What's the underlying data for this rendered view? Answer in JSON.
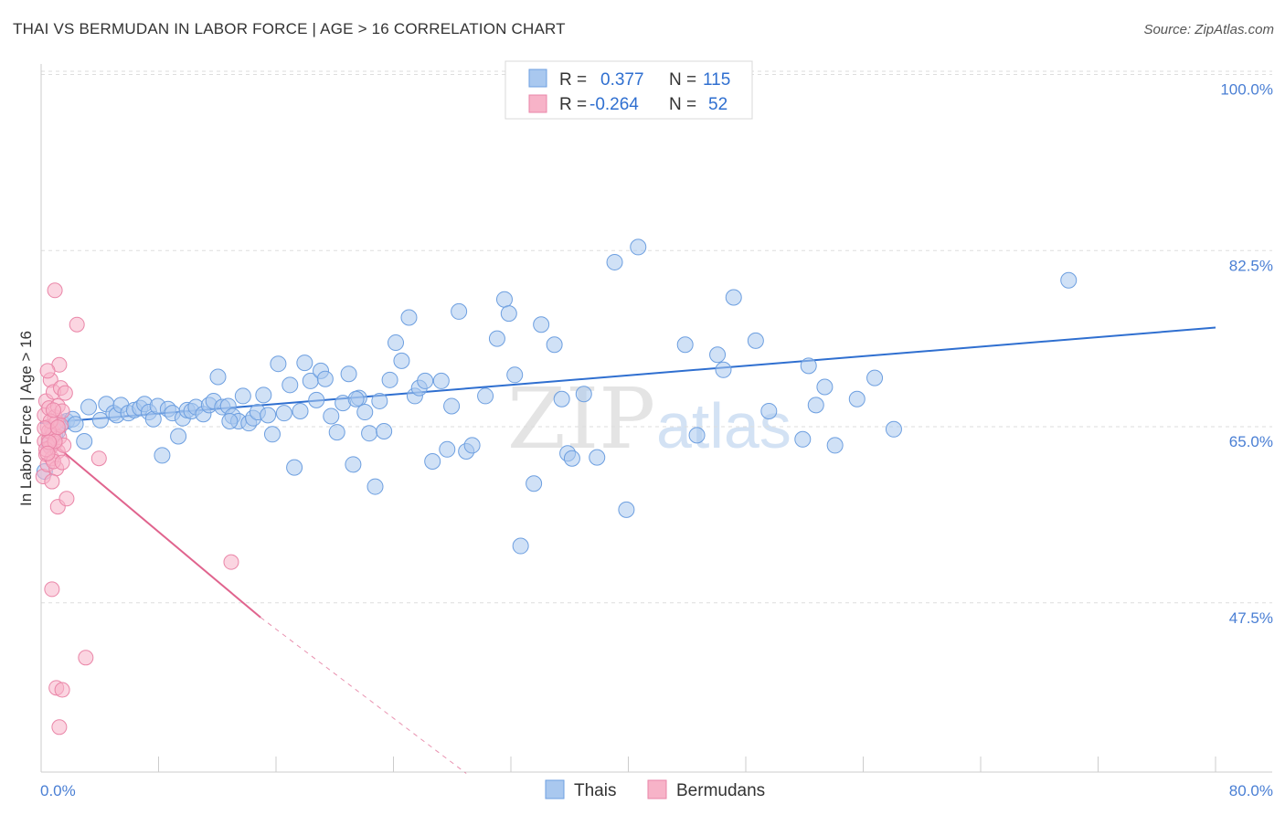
{
  "header": {
    "title": "THAI VS BERMUDAN IN LABOR FORCE | AGE > 16 CORRELATION CHART",
    "source": "Source: ZipAtlas.com"
  },
  "legend": {
    "rows": [
      {
        "r_label": "R =",
        "r_value": "0.377",
        "n_label": "N =",
        "n_value": "115",
        "color": "#a9c8ef"
      },
      {
        "r_label": "R =",
        "r_value": "-0.264",
        "n_label": "N =",
        "n_value": "52",
        "color": "#f7b3c8"
      }
    ]
  },
  "bottom_legend": [
    {
      "label": "Thais",
      "color": "#a9c8ef"
    },
    {
      "label": "Bermudans",
      "color": "#f7b3c8"
    }
  ],
  "watermark": {
    "zip": "ZIP",
    "atlas": "atlas"
  },
  "colors": {
    "blue_fill": "#a9c8ef",
    "blue_stroke": "#6d9fe0",
    "blue_line": "#2f6fd0",
    "pink_fill": "#f7b3c8",
    "pink_stroke": "#ea86a8",
    "pink_line": "#e0648e",
    "grid": "#dddddd",
    "axis": "#cccccc"
  },
  "chart_data": {
    "type": "scatter",
    "title": "THAI VS BERMUDAN IN LABOR FORCE | AGE > 16 CORRELATION CHART",
    "xlabel": "",
    "ylabel": "In Labor Force | Age > 16",
    "xlim": [
      0,
      80
    ],
    "ylim": [
      32,
      103
    ],
    "x_tick_labels": [
      "0.0%",
      "80.0%"
    ],
    "y_ticks": [
      47.5,
      65.0,
      82.5,
      100.0
    ],
    "y_tick_labels": [
      "47.5%",
      "65.0%",
      "82.5%",
      "100.0%"
    ],
    "grid": true,
    "series": [
      {
        "name": "Thais",
        "r": 0.377,
        "n": 115,
        "trend": {
          "x": [
            0,
            80
          ],
          "y": [
            66.8,
            76.3
          ]
        },
        "points": [
          [
            0.3,
            62.0
          ],
          [
            0.6,
            64.7
          ],
          [
            1.0,
            65.6
          ],
          [
            1.2,
            66.0
          ],
          [
            1.5,
            66.8
          ],
          [
            1.8,
            67.0
          ],
          [
            2.2,
            67.2
          ],
          [
            2.4,
            66.7
          ],
          [
            3.0,
            65.0
          ],
          [
            3.3,
            68.4
          ],
          [
            4.1,
            67.1
          ],
          [
            4.5,
            68.7
          ],
          [
            5.0,
            67.8
          ],
          [
            5.2,
            67.6
          ],
          [
            5.5,
            68.6
          ],
          [
            6.0,
            67.8
          ],
          [
            6.4,
            68.1
          ],
          [
            6.8,
            68.3
          ],
          [
            7.1,
            68.7
          ],
          [
            7.4,
            67.9
          ],
          [
            7.7,
            67.2
          ],
          [
            8.0,
            68.5
          ],
          [
            8.3,
            63.6
          ],
          [
            8.7,
            68.2
          ],
          [
            9.0,
            67.8
          ],
          [
            9.4,
            65.5
          ],
          [
            9.7,
            67.3
          ],
          [
            10.0,
            68.1
          ],
          [
            10.3,
            68.0
          ],
          [
            10.6,
            68.4
          ],
          [
            11.1,
            67.7
          ],
          [
            11.5,
            68.6
          ],
          [
            11.8,
            69.0
          ],
          [
            12.1,
            71.4
          ],
          [
            12.4,
            68.4
          ],
          [
            12.8,
            68.5
          ],
          [
            13.1,
            67.5
          ],
          [
            13.5,
            67.0
          ],
          [
            13.8,
            69.5
          ],
          [
            14.2,
            66.8
          ],
          [
            14.5,
            67.3
          ],
          [
            14.8,
            67.9
          ],
          [
            15.2,
            69.6
          ],
          [
            15.5,
            67.6
          ],
          [
            15.8,
            65.7
          ],
          [
            16.2,
            72.7
          ],
          [
            16.6,
            67.8
          ],
          [
            17.0,
            70.6
          ],
          [
            17.3,
            62.4
          ],
          [
            17.7,
            68.0
          ],
          [
            18.0,
            72.8
          ],
          [
            18.4,
            71.0
          ],
          [
            18.8,
            69.1
          ],
          [
            19.1,
            72.0
          ],
          [
            19.4,
            71.2
          ],
          [
            19.8,
            67.5
          ],
          [
            20.2,
            65.9
          ],
          [
            20.6,
            68.8
          ],
          [
            21.0,
            71.7
          ],
          [
            21.3,
            62.7
          ],
          [
            21.7,
            69.3
          ],
          [
            22.1,
            67.9
          ],
          [
            22.4,
            65.8
          ],
          [
            22.8,
            60.5
          ],
          [
            23.1,
            69.0
          ],
          [
            23.4,
            66.0
          ],
          [
            23.8,
            71.1
          ],
          [
            24.2,
            74.8
          ],
          [
            24.6,
            73.0
          ],
          [
            25.1,
            77.3
          ],
          [
            25.5,
            69.5
          ],
          [
            25.8,
            70.3
          ],
          [
            26.2,
            71.0
          ],
          [
            26.7,
            63.0
          ],
          [
            27.3,
            71.0
          ],
          [
            27.7,
            64.2
          ],
          [
            28.0,
            68.5
          ],
          [
            28.5,
            77.9
          ],
          [
            29.0,
            64.0
          ],
          [
            29.4,
            64.6
          ],
          [
            30.3,
            69.5
          ],
          [
            31.1,
            75.2
          ],
          [
            31.6,
            79.1
          ],
          [
            31.9,
            77.7
          ],
          [
            32.3,
            71.6
          ],
          [
            32.7,
            54.6
          ],
          [
            33.6,
            60.8
          ],
          [
            34.1,
            76.6
          ],
          [
            35.0,
            74.6
          ],
          [
            35.5,
            69.2
          ],
          [
            35.9,
            63.8
          ],
          [
            36.2,
            63.3
          ],
          [
            37.0,
            69.7
          ],
          [
            39.1,
            82.8
          ],
          [
            39.9,
            58.2
          ],
          [
            40.7,
            84.3
          ],
          [
            43.9,
            74.6
          ],
          [
            44.7,
            65.6
          ],
          [
            46.1,
            73.6
          ],
          [
            46.5,
            72.1
          ],
          [
            47.2,
            79.3
          ],
          [
            48.7,
            75.0
          ],
          [
            49.6,
            68.0
          ],
          [
            51.9,
            65.2
          ],
          [
            52.3,
            72.5
          ],
          [
            52.8,
            68.6
          ],
          [
            53.4,
            70.4
          ],
          [
            54.1,
            64.6
          ],
          [
            55.6,
            69.2
          ],
          [
            56.8,
            71.3
          ],
          [
            58.1,
            66.2
          ],
          [
            70.0,
            81.0
          ],
          [
            21.5,
            69.2
          ],
          [
            12.9,
            67.0
          ],
          [
            37.9,
            63.4
          ]
        ]
      },
      {
        "name": "Bermudans",
        "r": -0.264,
        "n": 52,
        "trend": {
          "x": [
            0.3,
            15.0
          ],
          "y": [
            65.5,
            47.5
          ]
        },
        "trend_dashed": {
          "x": [
            15.0,
            29.0
          ],
          "y": [
            47.5,
            32.0
          ]
        },
        "points": [
          [
            0.2,
            61.5
          ],
          [
            0.3,
            65.0
          ],
          [
            0.3,
            67.6
          ],
          [
            0.4,
            69.0
          ],
          [
            0.4,
            63.7
          ],
          [
            0.5,
            66.4
          ],
          [
            0.5,
            62.7
          ],
          [
            0.6,
            65.2
          ],
          [
            0.6,
            68.3
          ],
          [
            0.7,
            64.4
          ],
          [
            0.7,
            71.1
          ],
          [
            0.8,
            66.1
          ],
          [
            0.8,
            63.3
          ],
          [
            0.9,
            65.8
          ],
          [
            0.9,
            69.9
          ],
          [
            1.0,
            64.8
          ],
          [
            1.0,
            67.4
          ],
          [
            1.1,
            62.3
          ],
          [
            1.1,
            66.9
          ],
          [
            1.2,
            68.5
          ],
          [
            1.2,
            64.0
          ],
          [
            1.3,
            72.6
          ],
          [
            1.3,
            65.4
          ],
          [
            1.4,
            66.6
          ],
          [
            1.4,
            70.3
          ],
          [
            1.5,
            68.0
          ],
          [
            1.6,
            64.6
          ],
          [
            1.7,
            69.8
          ],
          [
            0.5,
            72.0
          ],
          [
            0.8,
            61.0
          ],
          [
            1.0,
            80.0
          ],
          [
            1.2,
            58.5
          ],
          [
            1.8,
            59.3
          ],
          [
            2.5,
            76.6
          ],
          [
            4.0,
            63.3
          ],
          [
            13.0,
            53.0
          ],
          [
            0.8,
            50.3
          ],
          [
            3.1,
            43.5
          ],
          [
            1.1,
            40.5
          ],
          [
            1.5,
            40.3
          ],
          [
            1.3,
            36.6
          ],
          [
            0.6,
            66.0
          ],
          [
            0.9,
            63.0
          ],
          [
            0.4,
            64.2
          ],
          [
            0.7,
            67.0
          ],
          [
            1.0,
            65.0
          ],
          [
            1.5,
            62.9
          ],
          [
            0.3,
            66.3
          ],
          [
            0.6,
            64.9
          ],
          [
            1.2,
            66.4
          ],
          [
            0.9,
            68.1
          ],
          [
            0.5,
            63.8
          ]
        ]
      }
    ]
  }
}
